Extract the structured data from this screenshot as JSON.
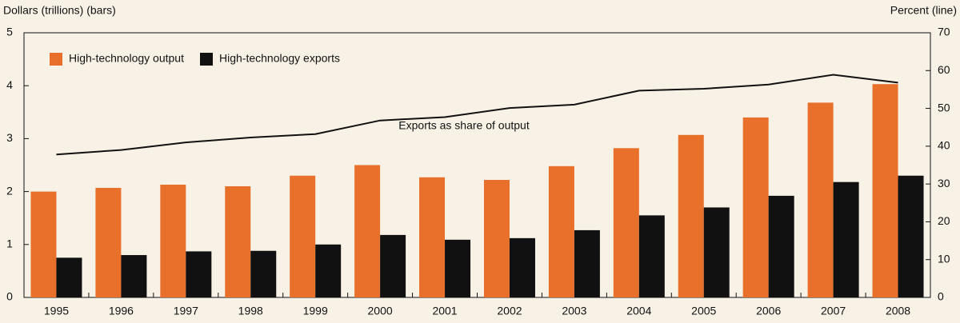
{
  "chart_data": {
    "type": "bar",
    "y_label": "Dollars (trillions) (bars)",
    "y2_label": "Percent (line)",
    "annotation": "Exports as share of output",
    "categories": [
      "1995",
      "1996",
      "1997",
      "1998",
      "1999",
      "2000",
      "2001",
      "2002",
      "2003",
      "2004",
      "2005",
      "2006",
      "2007",
      "2008"
    ],
    "series": [
      {
        "name": "High-technology output",
        "color": "#e8702a",
        "values": [
          2.0,
          2.07,
          2.13,
          2.1,
          2.3,
          2.5,
          2.27,
          2.22,
          2.48,
          2.82,
          3.07,
          3.4,
          3.68,
          4.03
        ]
      },
      {
        "name": "High-technology exports",
        "color": "#111111",
        "values": [
          0.75,
          0.8,
          0.87,
          0.88,
          1.0,
          1.18,
          1.09,
          1.12,
          1.27,
          1.55,
          1.7,
          1.92,
          2.18,
          2.3
        ]
      },
      {
        "type": "line",
        "axis": "y2",
        "color": "#111111",
        "values": [
          37.8,
          39,
          41,
          42.3,
          43.2,
          46.8,
          47.7,
          50.1,
          51,
          54.7,
          55.2,
          56.3,
          58.9,
          56.8
        ]
      }
    ],
    "ylim": [
      0,
      5
    ],
    "yticks": [
      0,
      1,
      2,
      3,
      4,
      5
    ],
    "y2lim": [
      0,
      70
    ],
    "y2ticks": [
      0,
      10,
      20,
      30,
      40,
      50,
      60,
      70
    ],
    "legend": "upper left"
  }
}
